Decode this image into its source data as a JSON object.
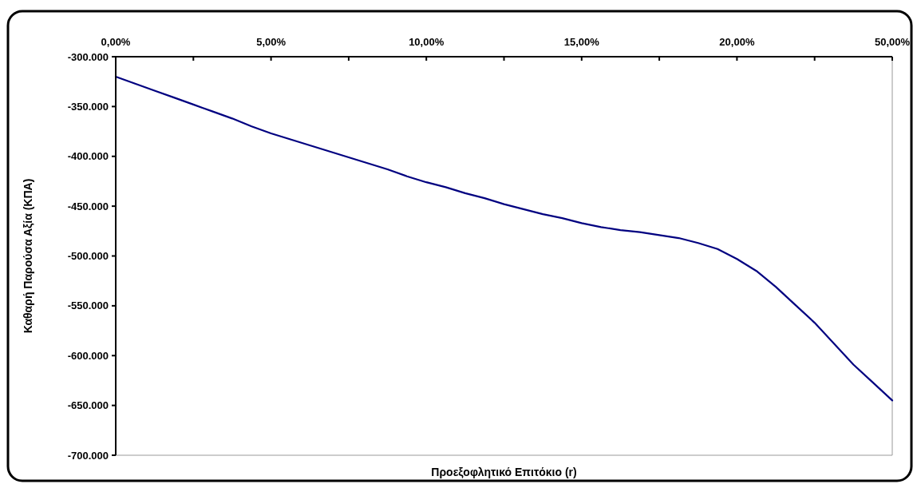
{
  "chart_data": {
    "type": "line",
    "xlabel": "Προεξοφλητικό Επιτόκιο (r)",
    "ylabel": "Καθαρή Παρούσα Αξία (ΚΠΑ)",
    "categories": [
      "0,00%",
      null,
      null,
      null,
      null,
      null,
      null,
      null,
      "5,00%",
      null,
      null,
      null,
      null,
      null,
      null,
      null,
      "10,00%",
      null,
      null,
      null,
      null,
      null,
      null,
      null,
      "15,00%",
      null,
      null,
      null,
      null,
      null,
      null,
      null,
      "20,00%",
      null,
      null,
      null,
      null,
      null,
      null,
      null,
      "50,00%"
    ],
    "series": [
      {
        "color": "#000080",
        "values": [
          -320000,
          -327000,
          -334000,
          -341000,
          -348000,
          -355000,
          -362000,
          -370000,
          -377000,
          -383000,
          -389000,
          -395000,
          -401000,
          -407000,
          -413000,
          -420000,
          -426000,
          -431000,
          -437000,
          -442000,
          -448000,
          -453000,
          -458000,
          -462000,
          -467000,
          -471000,
          -474000,
          -476000,
          -479000,
          -482000,
          -487000,
          -493000,
          -503000,
          -515000,
          -531000,
          -549000,
          -567000,
          -588000,
          -609000,
          -627000,
          -645000
        ]
      }
    ],
    "ylim": [
      -700000,
      -300000
    ],
    "yticks": [
      {
        "value": -300000,
        "label": "-300.000"
      },
      {
        "value": -350000,
        "label": "-350.000"
      },
      {
        "value": -400000,
        "label": "-400.000"
      },
      {
        "value": -450000,
        "label": "-450.000"
      },
      {
        "value": -500000,
        "label": "-500.000"
      },
      {
        "value": -550000,
        "label": "-550.000"
      },
      {
        "value": -600000,
        "label": "-600.000"
      },
      {
        "value": -650000,
        "label": "-650.000"
      },
      {
        "value": -700000,
        "label": "-700.000"
      }
    ],
    "grid": false,
    "marker": "none",
    "line_style": "solid"
  }
}
